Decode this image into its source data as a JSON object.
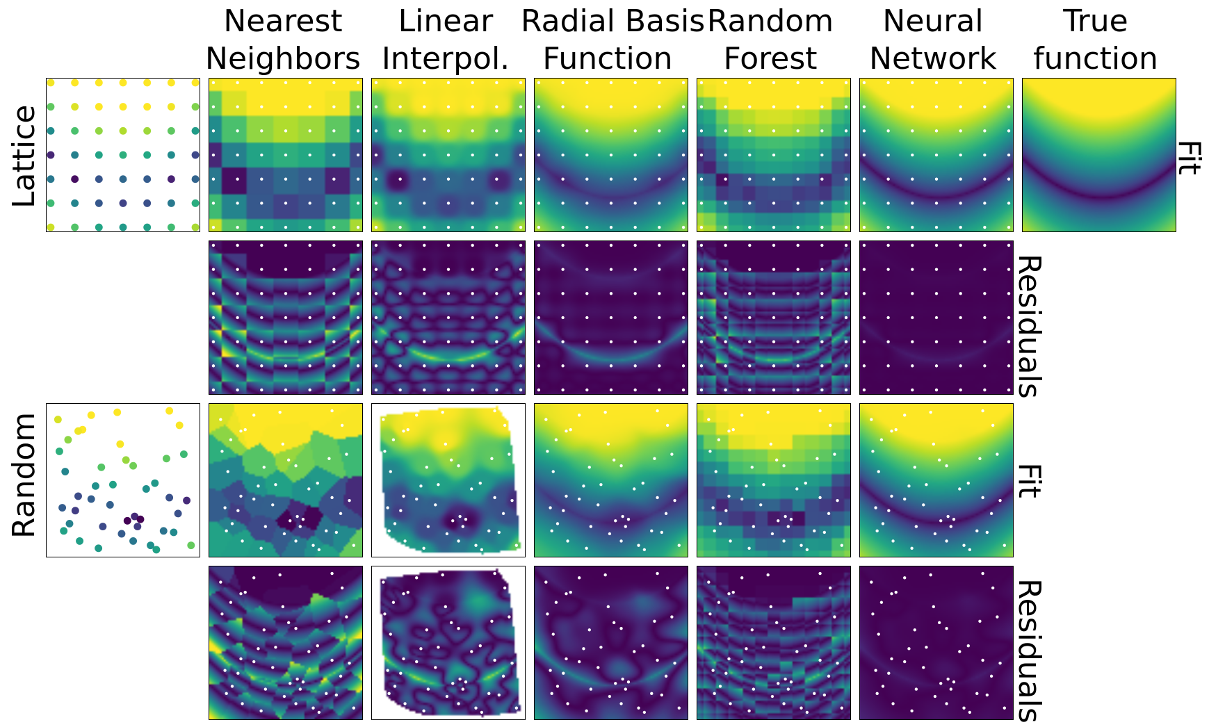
{
  "chart_data": {
    "type": "heatmap",
    "title": "",
    "colormap": "viridis",
    "point_color_on_maps": "#ffffff",
    "columns": [
      {
        "line1": "Nearest",
        "line2": "Neighbors"
      },
      {
        "line1": "Linear",
        "line2": "Interpol."
      },
      {
        "line1": "Radial Basis",
        "line2": "Function"
      },
      {
        "line1": "Random",
        "line2": "Forest"
      },
      {
        "line1": "Neural",
        "line2": "Network"
      },
      {
        "line1": "True",
        "line2": "function"
      }
    ],
    "sampling_labels": [
      "Lattice",
      "Random"
    ],
    "row_kind_labels": {
      "fit": "Fit",
      "residuals": "Residuals"
    },
    "grid": false,
    "xlim": [
      0,
      1
    ],
    "ylim": [
      0,
      1
    ],
    "lattice_points": {
      "x": [
        0.0,
        0.1667,
        0.3333,
        0.5,
        0.6667,
        0.8333,
        1.0
      ],
      "y": [
        0.0,
        0.1667,
        0.3333,
        0.5,
        0.6667,
        0.8333,
        1.0
      ]
    },
    "random_points": [
      [
        0.05,
        0.92
      ],
      [
        0.28,
        0.95
      ],
      [
        0.46,
        0.97
      ],
      [
        0.82,
        0.98
      ],
      [
        0.22,
        0.85
      ],
      [
        0.19,
        0.84
      ],
      [
        0.12,
        0.78
      ],
      [
        0.48,
        0.75
      ],
      [
        0.89,
        0.88
      ],
      [
        0.06,
        0.7
      ],
      [
        0.8,
        0.65
      ],
      [
        0.92,
        0.68
      ],
      [
        0.52,
        0.64
      ],
      [
        0.35,
        0.59
      ],
      [
        0.57,
        0.6
      ],
      [
        0.1,
        0.56
      ],
      [
        0.72,
        0.48
      ],
      [
        0.66,
        0.44
      ],
      [
        0.43,
        0.47
      ],
      [
        0.31,
        0.46
      ],
      [
        0.19,
        0.39
      ],
      [
        0.28,
        0.37
      ],
      [
        0.82,
        0.38
      ],
      [
        0.08,
        0.31
      ],
      [
        0.17,
        0.29
      ],
      [
        0.41,
        0.33
      ],
      [
        0.94,
        0.36
      ],
      [
        0.53,
        0.22
      ],
      [
        0.58,
        0.25
      ],
      [
        0.62,
        0.23
      ],
      [
        0.6,
        0.18
      ],
      [
        0.36,
        0.18
      ],
      [
        0.78,
        0.15
      ],
      [
        0.85,
        0.14
      ],
      [
        0.09,
        0.15
      ],
      [
        0.2,
        0.08
      ],
      [
        0.33,
        0.03
      ],
      [
        0.69,
        0.05
      ],
      [
        0.73,
        0.02
      ],
      [
        0.97,
        0.05
      ],
      [
        0.49,
        0.13
      ],
      [
        0.13,
        0.2
      ],
      [
        0.57,
        0.08
      ],
      [
        0.88,
        0.27
      ]
    ],
    "panels": [
      {
        "sampling": "Lattice",
        "row": "Fit",
        "methods": [
          "data points",
          "Nearest Neighbors",
          "Linear Interpol.",
          "Radial Basis Function",
          "Random Forest",
          "Neural Network",
          "True function"
        ]
      },
      {
        "sampling": "Lattice",
        "row": "Residuals",
        "methods": [
          "Nearest Neighbors",
          "Linear Interpol.",
          "Radial Basis Function",
          "Random Forest",
          "Neural Network"
        ]
      },
      {
        "sampling": "Random",
        "row": "Fit",
        "methods": [
          "data points",
          "Nearest Neighbors",
          "Linear Interpol.",
          "Radial Basis Function",
          "Random Forest",
          "Neural Network"
        ]
      },
      {
        "sampling": "Random",
        "row": "Residuals",
        "methods": [
          "Nearest Neighbors",
          "Linear Interpol.",
          "Radial Basis Function",
          "Random Forest",
          "Neural Network"
        ]
      }
    ]
  }
}
